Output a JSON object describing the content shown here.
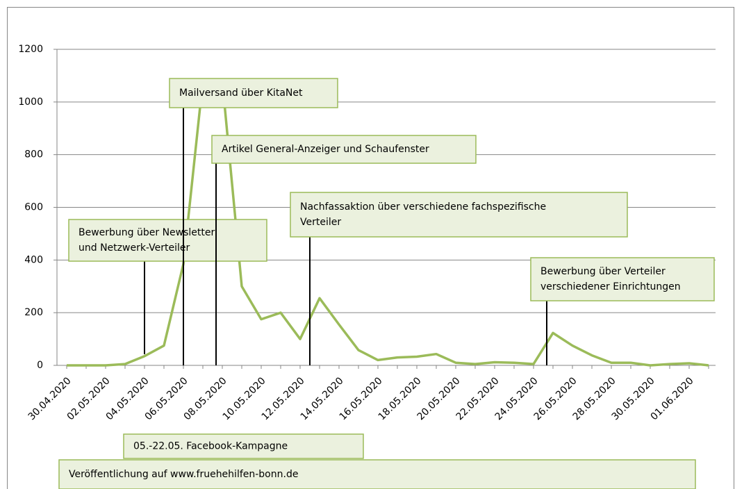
{
  "chart_data": {
    "type": "line",
    "categories": [
      "30.04.2020",
      null,
      "02.05.2020",
      null,
      "04.05.2020",
      null,
      "06.05.2020",
      null,
      "08.05.2020",
      null,
      "10.05.2020",
      null,
      "12.05.2020",
      null,
      "14.05.2020",
      null,
      "16.05.2020",
      null,
      "18.05.2020",
      null,
      "20.05.2020",
      null,
      "22.05.2020",
      null,
      "24.05.2020",
      null,
      "26.05.2020",
      null,
      "28.05.2020",
      null,
      "30.05.2020",
      null,
      "01.06.2020",
      null
    ],
    "series": [
      {
        "color": "#9bbb59",
        "values": [
          0,
          0,
          0,
          5,
          35,
          75,
          385,
          1080,
          1080,
          300,
          175,
          200,
          100,
          255,
          155,
          58,
          20,
          30,
          33,
          43,
          10,
          5,
          12,
          10,
          5,
          123,
          75,
          38,
          10,
          10,
          0,
          5,
          8,
          0
        ]
      }
    ],
    "ylim": [
      0,
      1200
    ],
    "yticks": [
      0,
      200,
      400,
      600,
      800,
      1000,
      1200
    ],
    "grid": true,
    "annotations": [
      {
        "lines": [
          "Bewerbung über Newsletter",
          "und Netzwerk-Verteiler"
        ]
      },
      {
        "lines": [
          "Mailversand über KitaNet"
        ]
      },
      {
        "lines": [
          "Artikel General-Anzeiger und Schaufenster"
        ]
      },
      {
        "lines": [
          "Nachfassaktion über verschiedene fachspezifische",
          "Verteiler"
        ]
      },
      {
        "lines": [
          "Bewerbung über Verteiler",
          "verschiedener Einrichtungen"
        ]
      },
      {
        "lines": [
          "05.-22.05. Facebook-Kampagne"
        ]
      },
      {
        "lines": [
          "Veröffentlichung auf www.fruehehilfen-bonn.de"
        ]
      }
    ]
  }
}
